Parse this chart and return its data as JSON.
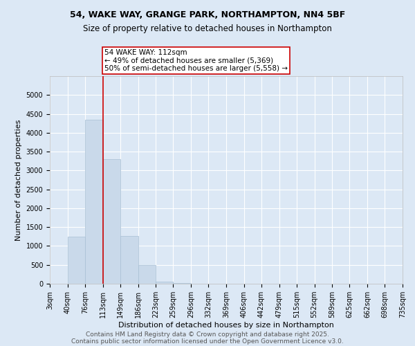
{
  "title1": "54, WAKE WAY, GRANGE PARK, NORTHAMPTON, NN4 5BF",
  "title2": "Size of property relative to detached houses in Northampton",
  "xlabel": "Distribution of detached houses by size in Northampton",
  "ylabel": "Number of detached properties",
  "bin_edges": [
    3,
    40,
    76,
    113,
    149,
    186,
    223,
    259,
    296,
    332,
    369,
    406,
    442,
    479,
    515,
    552,
    589,
    625,
    662,
    698,
    735
  ],
  "bar_heights": [
    0,
    1250,
    4350,
    3300,
    1270,
    490,
    50,
    20,
    0,
    0,
    0,
    0,
    0,
    0,
    0,
    0,
    0,
    0,
    0,
    0
  ],
  "bar_color": "#c9d9ea",
  "bar_edgecolor": "#a8bfd4",
  "bar_linewidth": 0.5,
  "vline_x": 113,
  "vline_color": "#cc0000",
  "vline_linewidth": 1.2,
  "annotation_text": "54 WAKE WAY: 112sqm\n← 49% of detached houses are smaller (5,369)\n50% of semi-detached houses are larger (5,558) →",
  "annotation_boxcolor": "white",
  "annotation_edgecolor": "#cc0000",
  "ylim": [
    0,
    5500
  ],
  "yticks": [
    0,
    500,
    1000,
    1500,
    2000,
    2500,
    3000,
    3500,
    4000,
    4500,
    5000
  ],
  "background_color": "#dce8f5",
  "grid_color": "white",
  "footer1": "Contains HM Land Registry data © Crown copyright and database right 2025.",
  "footer2": "Contains public sector information licensed under the Open Government Licence v3.0.",
  "title_fontsize": 9,
  "subtitle_fontsize": 8.5,
  "axis_label_fontsize": 8,
  "tick_fontsize": 7,
  "footer_fontsize": 6.5,
  "annotation_fontsize": 7.5
}
